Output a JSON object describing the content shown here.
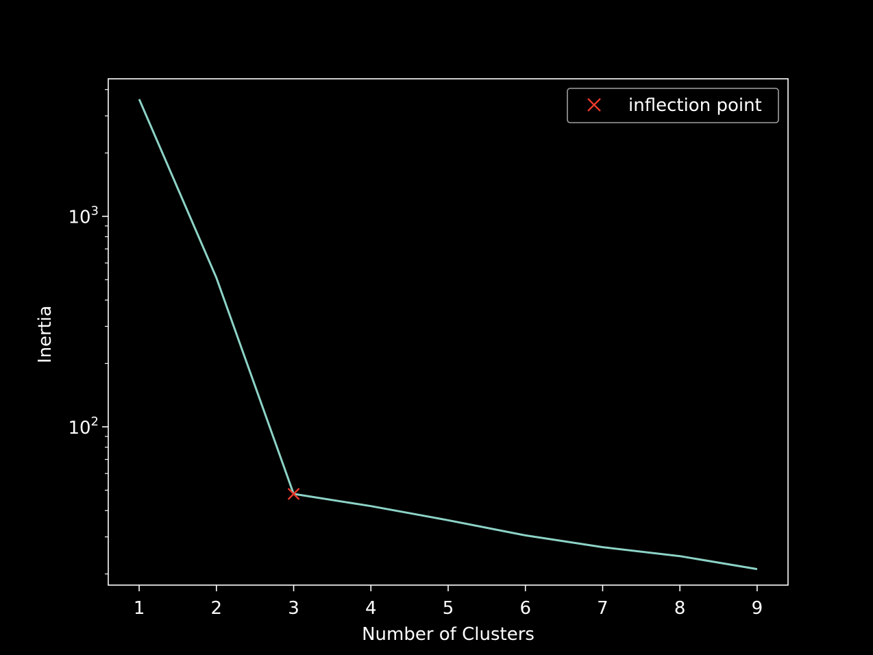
{
  "chart_data": {
    "type": "line",
    "xlabel": "Number of Clusters",
    "ylabel": "Inertia",
    "yscale": "log",
    "xlim": [
      0.6,
      9.4
    ],
    "ylim": [
      17.7,
      4500
    ],
    "x_ticks": [
      1,
      2,
      3,
      4,
      5,
      6,
      7,
      8,
      9
    ],
    "y_major_ticks": [
      {
        "value": 100,
        "base": "10",
        "exp": "2"
      },
      {
        "value": 1000,
        "base": "10",
        "exp": "3"
      }
    ],
    "y_minor_ticks": [
      20,
      30,
      40,
      50,
      60,
      70,
      80,
      90,
      200,
      300,
      400,
      500,
      600,
      700,
      800,
      900,
      2000,
      3000,
      4000
    ],
    "grid": false,
    "legend_placement": "top-right",
    "series": [
      {
        "x": [
          1,
          2,
          3,
          4,
          5,
          6,
          7,
          8,
          9
        ],
        "values": [
          3600,
          510,
          48,
          42,
          36,
          30.5,
          26.8,
          24.3,
          21.1
        ],
        "color": "#8dd3c7"
      }
    ],
    "markers": [
      {
        "name": "inflection point",
        "x": 3,
        "y": 48,
        "marker": "x",
        "color": "#e8392b"
      }
    ]
  }
}
